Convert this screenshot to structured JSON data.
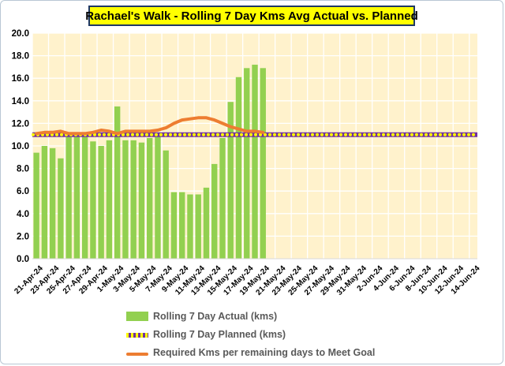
{
  "chart_data": {
    "type": "bar",
    "title": "Rachael's Walk - Rolling 7 Day Kms Avg Actual vs. Planned",
    "ylim": [
      0,
      20
    ],
    "yticks": [
      "0.0",
      "2.0",
      "4.0",
      "6.0",
      "8.0",
      "10.0",
      "12.0",
      "14.0",
      "16.0",
      "18.0",
      "20.0"
    ],
    "xtick_labels": [
      "21-Apr-24",
      "23-Apr-24",
      "25-Apr-24",
      "27-Apr-24",
      "29-Apr-24",
      "1-May-24",
      "3-May-24",
      "5-May-24",
      "7-May-24",
      "9-May-24",
      "11-May-24",
      "13-May-24",
      "15-May-24",
      "17-May-24",
      "19-May-24",
      "21-May-24",
      "23-May-24",
      "25-May-24",
      "27-May-24",
      "29-May-24",
      "31-May-24",
      "2-Jun-24",
      "4-Jun-24",
      "6-Jun-24",
      "8-Jun-24",
      "10-Jun-24",
      "12-Jun-24",
      "14-Jun-24"
    ],
    "n_days": 55,
    "grid": true,
    "legend_position": "bottom",
    "series": [
      {
        "name": "Rolling 7 Day Actual (kms)",
        "kind": "bar",
        "color": "#92d050",
        "values": [
          9.4,
          10.0,
          9.8,
          8.9,
          10.8,
          10.9,
          10.8,
          10.4,
          10.0,
          10.5,
          13.5,
          10.5,
          10.5,
          10.3,
          10.7,
          10.8,
          9.6,
          5.9,
          5.9,
          5.7,
          5.7,
          6.3,
          8.4,
          10.7,
          13.9,
          16.1,
          16.9,
          17.2,
          16.9
        ]
      },
      {
        "name": "Rolling 7 Day Planned (kms)",
        "kind": "line",
        "style": "dotted",
        "color": "#7030a0",
        "dot_color": "#ffff00",
        "value": 11.0
      },
      {
        "name": "Required Kms per remaining days to Meet Goal",
        "kind": "line",
        "color": "#ed7d31",
        "values": [
          11.1,
          11.2,
          11.2,
          11.3,
          11.1,
          11.1,
          11.1,
          11.2,
          11.4,
          11.3,
          11.1,
          11.3,
          11.3,
          11.3,
          11.3,
          11.4,
          11.6,
          12.0,
          12.3,
          12.4,
          12.5,
          12.5,
          12.3,
          12.0,
          11.7,
          11.5,
          11.3,
          11.3,
          11.2
        ]
      }
    ]
  }
}
